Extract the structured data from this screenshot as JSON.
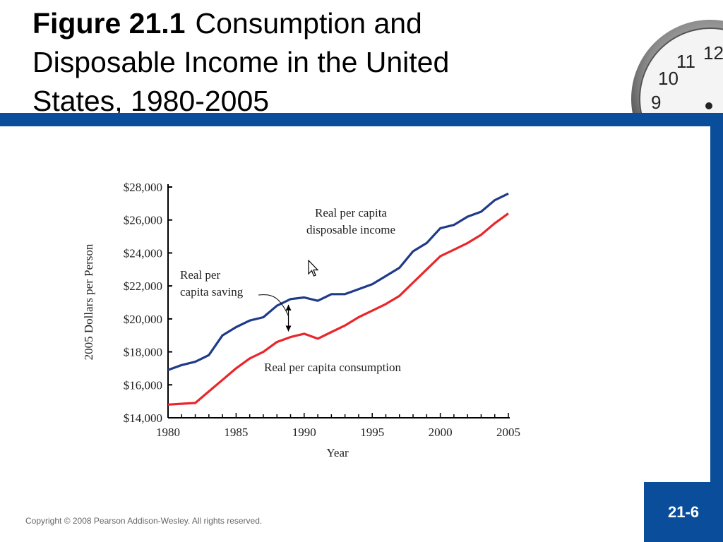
{
  "slide": {
    "title_bold": "Figure 21.1",
    "title_rest": "Consumption and Disposable Income in the United States, 1980-2005",
    "copyright": "Copyright © 2008 Pearson Addison-Wesley. All rights reserved.",
    "page_number": "21-6"
  },
  "colors": {
    "accent_blue": "#0a4d9a",
    "income_line": "#1f3a8a",
    "consumption_line": "#e8262b"
  },
  "clock": {
    "numerals": [
      "12",
      "11",
      "10",
      "9"
    ]
  },
  "chart_data": {
    "type": "line",
    "title": "",
    "xlabel": "Year",
    "ylabel": "2005 Dollars per Person",
    "xlim": [
      1980,
      2005
    ],
    "ylim": [
      14000,
      28000
    ],
    "x_ticks": [
      1980,
      1985,
      1990,
      1995,
      2000,
      2005
    ],
    "x_tick_labels": [
      "1980",
      "1985",
      "1990",
      "1995",
      "2000",
      "2005"
    ],
    "y_ticks": [
      14000,
      16000,
      18000,
      20000,
      22000,
      24000,
      26000,
      28000
    ],
    "y_tick_labels": [
      "$14,000",
      "$16,000",
      "$18,000",
      "$20,000",
      "$22,000",
      "$24,000",
      "$26,000",
      "$28,000"
    ],
    "x": [
      1980,
      1981,
      1982,
      1983,
      1984,
      1985,
      1986,
      1987,
      1988,
      1989,
      1990,
      1991,
      1992,
      1993,
      1994,
      1995,
      1996,
      1997,
      1998,
      1999,
      2000,
      2001,
      2002,
      2003,
      2004,
      2005
    ],
    "series": [
      {
        "name": "Real per capita disposable income",
        "color": "#1f3a8a",
        "values": [
          16900,
          17200,
          17400,
          17800,
          19000,
          19500,
          19900,
          20100,
          20800,
          21200,
          21300,
          21100,
          21500,
          21500,
          21800,
          22100,
          22600,
          23100,
          24100,
          24600,
          25500,
          25700,
          26200,
          26500,
          27200,
          27600
        ]
      },
      {
        "name": "Real per capita consumption",
        "color": "#e8262b",
        "values": [
          14800,
          14850,
          14900,
          15600,
          16300,
          17000,
          17600,
          18000,
          18600,
          18900,
          19100,
          18800,
          19200,
          19600,
          20100,
          20500,
          20900,
          21400,
          22200,
          23000,
          23800,
          24200,
          24600,
          25100,
          25800,
          26400
        ]
      }
    ],
    "annotations": [
      {
        "text_lines": [
          "Real per capita",
          "disposable income"
        ],
        "target_series": "Real per capita disposable income"
      },
      {
        "text_lines": [
          "Real per",
          "capita saving"
        ],
        "arrow_x": 1989
      },
      {
        "text_lines": [
          "Real per capita consumption"
        ],
        "target_series": "Real per capita consumption"
      }
    ],
    "grid": false,
    "legend": "none"
  }
}
